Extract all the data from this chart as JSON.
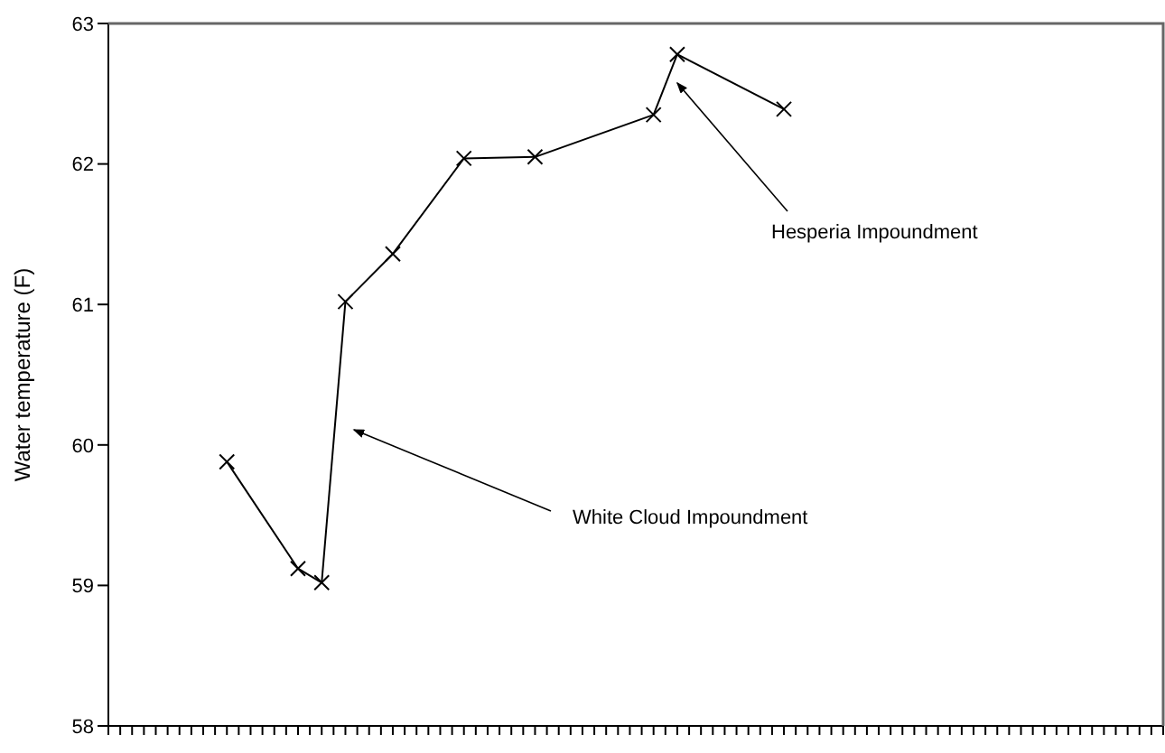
{
  "chart_data": {
    "type": "line",
    "ylabel": "Water temperature (F)",
    "categories": [
      null,
      null,
      null,
      null,
      null,
      null,
      null,
      null,
      null,
      null,
      null,
      null,
      null,
      null,
      null,
      null,
      null,
      null,
      null,
      null,
      null,
      null,
      null,
      null,
      null,
      null,
      null,
      null,
      null,
      null,
      null,
      null,
      null,
      null,
      null,
      null,
      null,
      null,
      null,
      null,
      null,
      null,
      null,
      null,
      null,
      null,
      null,
      null,
      null,
      null,
      null,
      null,
      null,
      null,
      null,
      null,
      null,
      null,
      null,
      null,
      null,
      null,
      null,
      null,
      null,
      null,
      null,
      null,
      null,
      null,
      null,
      null,
      null,
      null,
      null,
      null,
      null,
      null,
      null,
      null,
      null,
      null,
      null,
      null,
      null,
      null,
      null,
      null,
      null,
      null
    ],
    "series": [
      {
        "color": "#000000",
        "values": [
          null,
          null,
          null,
          null,
          null,
          null,
          null,
          null,
          null,
          null,
          59.88,
          null,
          null,
          null,
          null,
          null,
          59.12,
          null,
          59.02,
          null,
          61.02,
          null,
          null,
          null,
          61.36,
          null,
          null,
          null,
          null,
          null,
          62.04,
          null,
          null,
          null,
          null,
          null,
          62.05,
          null,
          null,
          null,
          null,
          null,
          null,
          null,
          null,
          null,
          62.35,
          null,
          62.78,
          null,
          null,
          null,
          null,
          null,
          null,
          null,
          null,
          62.39,
          null,
          null,
          null,
          null,
          null,
          null,
          null,
          null,
          null,
          null,
          null,
          null,
          null,
          null,
          null,
          null,
          null,
          null,
          null,
          null,
          null,
          null,
          null,
          null,
          null,
          null,
          null,
          null,
          null,
          null,
          null,
          null
        ]
      }
    ],
    "ylim": [
      58,
      63
    ],
    "yticks": [
      58,
      59,
      60,
      61,
      62,
      63
    ],
    "tick_labels": "y",
    "marker": "cross",
    "line_style": "solid",
    "annotations": [
      "White Cloud Impoundment",
      "Hesperia Impoundment"
    ]
  }
}
